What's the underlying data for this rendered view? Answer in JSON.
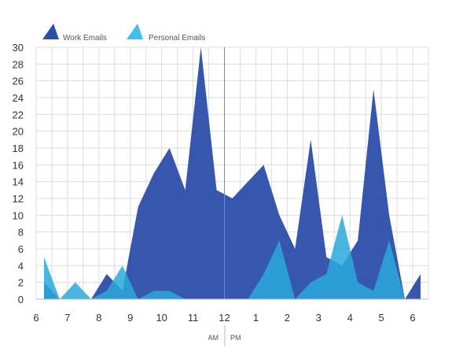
{
  "chart_data": {
    "type": "area",
    "title": "",
    "xlabel": "",
    "ylabel": "",
    "x_ticks": [
      "6",
      "7",
      "8",
      "9",
      "10",
      "11",
      "12",
      "1",
      "2",
      "3",
      "4",
      "5",
      "6"
    ],
    "x_range": [
      6,
      18.5
    ],
    "ylim": [
      0,
      30
    ],
    "y_ticks": [
      0,
      2,
      4,
      6,
      8,
      10,
      12,
      14,
      16,
      18,
      20,
      22,
      24,
      26,
      28,
      30
    ],
    "meridiem_labels": {
      "am": "AM",
      "pm": "PM"
    },
    "grid": true,
    "legend_position": "top-left",
    "series": [
      {
        "name": "Work Emails",
        "color": "#2c4eab",
        "points": [
          [
            6.25,
            2
          ],
          [
            6.75,
            0
          ],
          [
            7.25,
            0
          ],
          [
            7.75,
            0
          ],
          [
            8.25,
            3
          ],
          [
            8.75,
            1
          ],
          [
            9.25,
            11
          ],
          [
            9.75,
            15
          ],
          [
            10.25,
            18
          ],
          [
            10.75,
            13
          ],
          [
            11.25,
            30
          ],
          [
            11.75,
            13
          ],
          [
            12.25,
            12
          ],
          [
            12.75,
            14
          ],
          [
            13.25,
            16
          ],
          [
            13.75,
            10
          ],
          [
            14.25,
            6
          ],
          [
            14.75,
            19
          ],
          [
            15.25,
            5
          ],
          [
            15.75,
            4
          ],
          [
            16.25,
            7
          ],
          [
            16.75,
            25
          ],
          [
            17.25,
            10
          ],
          [
            17.75,
            0
          ],
          [
            18.25,
            3
          ]
        ]
      },
      {
        "name": "Personal Emails",
        "color": "#2aa8dc",
        "points": [
          [
            6.25,
            5
          ],
          [
            6.75,
            0
          ],
          [
            7.25,
            2
          ],
          [
            7.75,
            0
          ],
          [
            8.25,
            1
          ],
          [
            8.75,
            4
          ],
          [
            9.25,
            0
          ],
          [
            9.75,
            1
          ],
          [
            10.25,
            1
          ],
          [
            10.75,
            0
          ],
          [
            11.25,
            0
          ],
          [
            11.75,
            0
          ],
          [
            12.25,
            0
          ],
          [
            12.75,
            0
          ],
          [
            13.25,
            3
          ],
          [
            13.75,
            7
          ],
          [
            14.25,
            0
          ],
          [
            14.75,
            2
          ],
          [
            15.25,
            3
          ],
          [
            15.75,
            10
          ],
          [
            16.25,
            2
          ],
          [
            16.75,
            1
          ],
          [
            17.25,
            7
          ],
          [
            17.75,
            0
          ],
          [
            18.25,
            0
          ]
        ]
      }
    ]
  }
}
